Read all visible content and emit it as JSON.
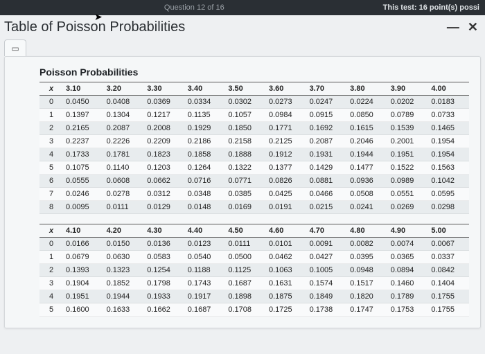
{
  "topbar": {
    "center_text": "Question 12 of 16",
    "right_text": "This test: 16 point(s) possi"
  },
  "title": "Table of Poisson Probabilities",
  "controls": {
    "minimize": "—",
    "close": "✕"
  },
  "tab_icon": "▭",
  "section_title": "Poisson Probabilities",
  "x_label": "x",
  "block1": {
    "lambdas": [
      "3.10",
      "3.20",
      "3.30",
      "3.40",
      "3.50",
      "3.60",
      "3.70",
      "3.80",
      "3.90",
      "4.00"
    ],
    "rows": [
      {
        "x": "0",
        "v": [
          "0.0450",
          "0.0408",
          "0.0369",
          "0.0334",
          "0.0302",
          "0.0273",
          "0.0247",
          "0.0224",
          "0.0202",
          "0.0183"
        ]
      },
      {
        "x": "1",
        "v": [
          "0.1397",
          "0.1304",
          "0.1217",
          "0.1135",
          "0.1057",
          "0.0984",
          "0.0915",
          "0.0850",
          "0.0789",
          "0.0733"
        ]
      },
      {
        "x": "2",
        "v": [
          "0.2165",
          "0.2087",
          "0.2008",
          "0.1929",
          "0.1850",
          "0.1771",
          "0.1692",
          "0.1615",
          "0.1539",
          "0.1465"
        ]
      },
      {
        "x": "3",
        "v": [
          "0.2237",
          "0.2226",
          "0.2209",
          "0.2186",
          "0.2158",
          "0.2125",
          "0.2087",
          "0.2046",
          "0.2001",
          "0.1954"
        ]
      },
      {
        "x": "4",
        "v": [
          "0.1733",
          "0.1781",
          "0.1823",
          "0.1858",
          "0.1888",
          "0.1912",
          "0.1931",
          "0.1944",
          "0.1951",
          "0.1954"
        ]
      },
      {
        "x": "5",
        "v": [
          "0.1075",
          "0.1140",
          "0.1203",
          "0.1264",
          "0.1322",
          "0.1377",
          "0.1429",
          "0.1477",
          "0.1522",
          "0.1563"
        ]
      },
      {
        "x": "6",
        "v": [
          "0.0555",
          "0.0608",
          "0.0662",
          "0.0716",
          "0.0771",
          "0.0826",
          "0.0881",
          "0.0936",
          "0.0989",
          "0.1042"
        ]
      },
      {
        "x": "7",
        "v": [
          "0.0246",
          "0.0278",
          "0.0312",
          "0.0348",
          "0.0385",
          "0.0425",
          "0.0466",
          "0.0508",
          "0.0551",
          "0.0595"
        ]
      },
      {
        "x": "8",
        "v": [
          "0.0095",
          "0.0111",
          "0.0129",
          "0.0148",
          "0.0169",
          "0.0191",
          "0.0215",
          "0.0241",
          "0.0269",
          "0.0298"
        ]
      }
    ]
  },
  "block2": {
    "lambdas": [
      "4.10",
      "4.20",
      "4.30",
      "4.40",
      "4.50",
      "4.60",
      "4.70",
      "4.80",
      "4.90",
      "5.00"
    ],
    "rows": [
      {
        "x": "0",
        "v": [
          "0.0166",
          "0.0150",
          "0.0136",
          "0.0123",
          "0.0111",
          "0.0101",
          "0.0091",
          "0.0082",
          "0.0074",
          "0.0067"
        ]
      },
      {
        "x": "1",
        "v": [
          "0.0679",
          "0.0630",
          "0.0583",
          "0.0540",
          "0.0500",
          "0.0462",
          "0.0427",
          "0.0395",
          "0.0365",
          "0.0337"
        ]
      },
      {
        "x": "2",
        "v": [
          "0.1393",
          "0.1323",
          "0.1254",
          "0.1188",
          "0.1125",
          "0.1063",
          "0.1005",
          "0.0948",
          "0.0894",
          "0.0842"
        ]
      },
      {
        "x": "3",
        "v": [
          "0.1904",
          "0.1852",
          "0.1798",
          "0.1743",
          "0.1687",
          "0.1631",
          "0.1574",
          "0.1517",
          "0.1460",
          "0.1404"
        ]
      },
      {
        "x": "4",
        "v": [
          "0.1951",
          "0.1944",
          "0.1933",
          "0.1917",
          "0.1898",
          "0.1875",
          "0.1849",
          "0.1820",
          "0.1789",
          "0.1755"
        ]
      },
      {
        "x": "5",
        "v": [
          "0.1600",
          "0.1633",
          "0.1662",
          "0.1687",
          "0.1708",
          "0.1725",
          "0.1738",
          "0.1747",
          "0.1753",
          "0.1755"
        ]
      }
    ]
  },
  "styling": {
    "page_bg": "#eef0f2",
    "card_bg": "#f5f7f8",
    "border": "#d5d8db",
    "title_fontsize": 20,
    "cell_fontsize": 11,
    "row_odd_bg": "rgba(210,215,220,0.35)",
    "row_even_bg": "rgba(255,255,255,0.4)",
    "header_border": "#555555",
    "topbar_bg": "#2a2f34"
  }
}
